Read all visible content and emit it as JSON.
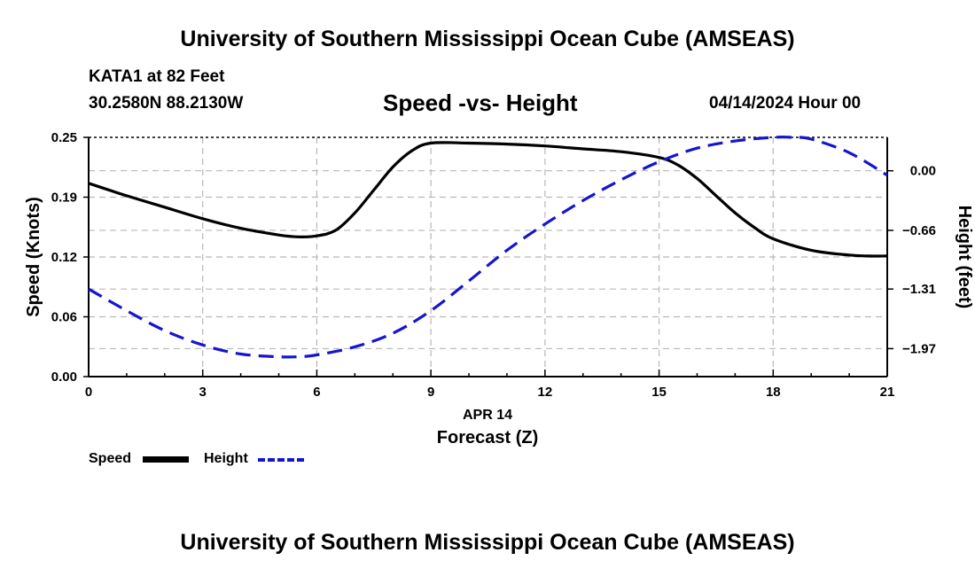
{
  "header": {
    "title": "University of Southern Mississippi Ocean Cube (AMSEAS)",
    "station": "KATA1 at 82 Feet",
    "coords": "30.2580N  88.2130W",
    "chart_title": "Speed -vs- Height",
    "datetime": "04/14/2024 Hour 00"
  },
  "footer": {
    "title": "University of Southern Mississippi Ocean Cube (AMSEAS)"
  },
  "legend": {
    "speed_label": "Speed",
    "height_label": "Height"
  },
  "colors": {
    "speed": "#000000",
    "height": "#1515d0",
    "grid": "#b8b8b8"
  },
  "chart_data": {
    "type": "line",
    "title": "Speed -vs- Height",
    "xlabel": "Forecast (Z)",
    "xsublabel": "APR 14",
    "ylabel": "Speed (Knots)",
    "y2label": "Height (feet)",
    "xlim": [
      0,
      21
    ],
    "ylim": [
      0,
      0.25
    ],
    "y2lim": [
      -2.28,
      0.37
    ],
    "xticks": [
      0,
      3,
      6,
      9,
      12,
      15,
      18,
      21
    ],
    "xtick_labels": [
      "0",
      "3",
      "6",
      "9",
      "12",
      "15",
      "18",
      "21"
    ],
    "yticks": [
      0,
      0.0625,
      0.125,
      0.1875,
      0.25
    ],
    "ytick_labels": [
      "0.00",
      "0.06",
      "0.12",
      "0.19",
      "0.25"
    ],
    "y2ticks": [
      -1.97,
      -1.31,
      -0.66,
      0.0
    ],
    "y2tick_labels": [
      "−1.97",
      "−1.31",
      "−0.66",
      "0.00"
    ],
    "grid": true,
    "series": [
      {
        "name": "Speed",
        "axis": "left",
        "style": "solid",
        "x": [
          0,
          1,
          2,
          3,
          4,
          5,
          5.5,
          6,
          6.5,
          7,
          7.5,
          8,
          8.5,
          9,
          10,
          11,
          12,
          13,
          14,
          15,
          15.5,
          16,
          16.5,
          17,
          17.5,
          18,
          19,
          20,
          20.5,
          21
        ],
        "values": [
          0.202,
          0.189,
          0.177,
          0.165,
          0.155,
          0.148,
          0.146,
          0.147,
          0.153,
          0.171,
          0.195,
          0.219,
          0.236,
          0.244,
          0.244,
          0.243,
          0.241,
          0.238,
          0.235,
          0.229,
          0.221,
          0.207,
          0.189,
          0.171,
          0.156,
          0.144,
          0.132,
          0.127,
          0.126,
          0.126
        ]
      },
      {
        "name": "Height",
        "axis": "right",
        "style": "dashed",
        "x": [
          0,
          1,
          2,
          3,
          4,
          5,
          5.5,
          6,
          7,
          8,
          9,
          10,
          11,
          12,
          13,
          14,
          15,
          16,
          17,
          18,
          18.5,
          19,
          20,
          21
        ],
        "values": [
          -1.31,
          -1.55,
          -1.77,
          -1.93,
          -2.03,
          -2.06,
          -2.06,
          -2.04,
          -1.95,
          -1.8,
          -1.55,
          -1.22,
          -0.88,
          -0.59,
          -0.33,
          -0.1,
          0.1,
          0.25,
          0.33,
          0.37,
          0.37,
          0.35,
          0.2,
          -0.05
        ]
      }
    ]
  }
}
